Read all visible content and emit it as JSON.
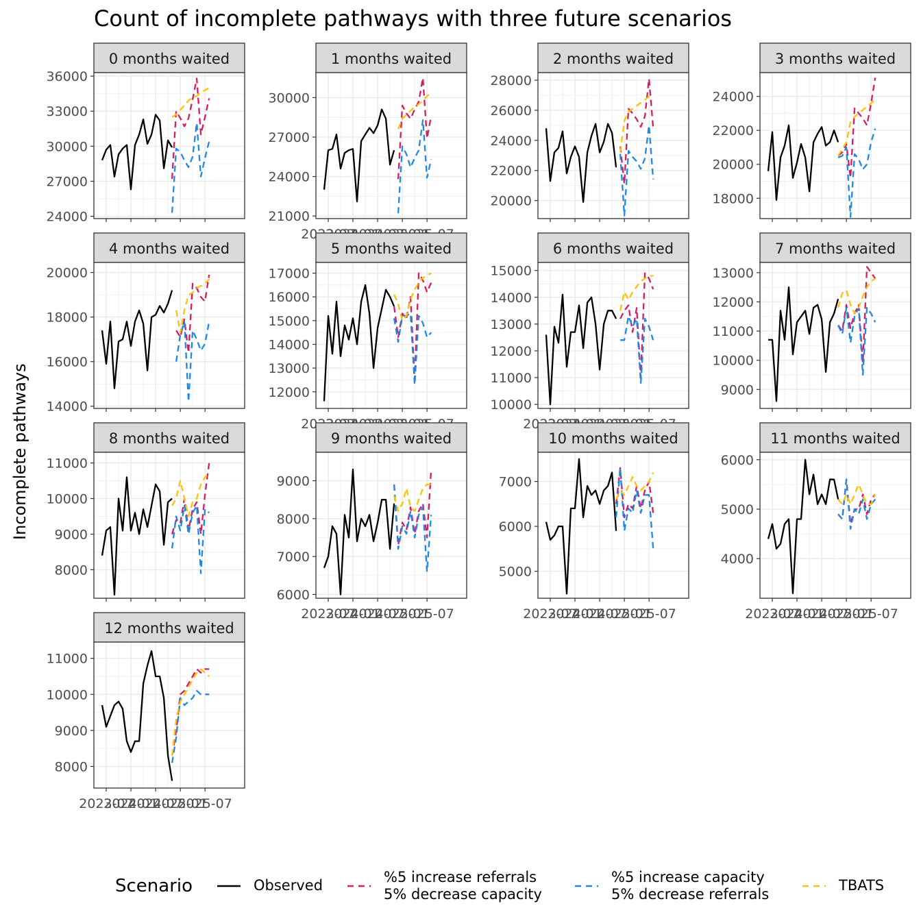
{
  "title": "Count of incomplete pathways with three future scenarios",
  "y_axis_label": "Incomplete pathways",
  "legend": {
    "title": "Scenario",
    "items": [
      {
        "id": "observed",
        "label_lines": [
          "Observed"
        ]
      },
      {
        "id": "increase_referrals",
        "label_lines": [
          "%5 increase referrals",
          "5% decrease capacity"
        ]
      },
      {
        "id": "increase_capacity",
        "label_lines": [
          "%5 increase capacity",
          "5% decrease referrals"
        ]
      },
      {
        "id": "tbats",
        "label_lines": [
          "TBATS"
        ]
      }
    ]
  },
  "colors": {
    "observed": "#000000",
    "increase_referrals": "#D81B60",
    "increase_capacity": "#1E88E5",
    "tbats": "#FFC107",
    "strip_fill": "#D9D9D9",
    "grid": "#EBEBEB",
    "panel_border": "#333333",
    "tick_text": "#4D4D4D"
  },
  "chart_data": {
    "type": "line",
    "facet_layout": "wrap 4 columns, free y scales",
    "x_tick_labels": [
      "2023-07",
      "2024-01",
      "2024-07",
      "2025-01",
      "2025-07"
    ],
    "series_order": [
      "observed",
      "increase_referrals",
      "increase_capacity",
      "tbats"
    ],
    "panels": [
      {
        "label": "0 months waited",
        "y_ticks": [
          24000,
          27000,
          30000,
          33000,
          36000
        ],
        "ylim": [
          23800,
          36300
        ],
        "show_x_axis": false,
        "series": {
          "observed": [
            28800,
            29700,
            30100,
            27400,
            29300,
            29800,
            30100,
            26300,
            30100,
            31000,
            32300,
            30200,
            31000,
            32700,
            32200,
            28100,
            30500,
            29900
          ],
          "increase_referrals": [
            27200,
            33000,
            32400,
            31700,
            32400,
            34000,
            35800,
            31000,
            32500,
            34100
          ],
          "increase_capacity": [
            24300,
            29800,
            29500,
            28800,
            28200,
            29100,
            32000,
            27400,
            29000,
            30400
          ],
          "tbats": [
            32500,
            32700,
            33100,
            33500,
            33900,
            34200,
            34300,
            34600,
            34800,
            35000
          ]
        }
      },
      {
        "label": "1 months waited",
        "y_ticks": [
          21000,
          24000,
          27000,
          30000
        ],
        "ylim": [
          20800,
          31900
        ],
        "show_x_axis": true,
        "series": {
          "observed": [
            23000,
            26000,
            26100,
            27200,
            24600,
            25800,
            26000,
            26100,
            22100,
            26700,
            27200,
            27700,
            27300,
            27900,
            29100,
            28400,
            24900,
            26000
          ],
          "increase_referrals": [
            23800,
            29400,
            28800,
            28400,
            29100,
            29700,
            31500,
            26900,
            28600
          ],
          "increase_capacity": [
            21200,
            26300,
            25700,
            24700,
            25400,
            26000,
            28300,
            23900,
            25300
          ],
          "tbats": [
            27600,
            28400,
            28700,
            29000,
            29300,
            29500,
            29800,
            30100,
            30400
          ]
        }
      },
      {
        "label": "2 months waited",
        "y_ticks": [
          20000,
          22000,
          24000,
          26000,
          28000
        ],
        "ylim": [
          18800,
          28500
        ],
        "show_x_axis": false,
        "series": {
          "observed": [
            24800,
            21300,
            23200,
            23500,
            24600,
            21800,
            22900,
            23600,
            22900,
            19900,
            23200,
            24300,
            25100,
            23200,
            23900,
            25100,
            24500,
            22200
          ],
          "increase_referrals": [
            23600,
            21100,
            26100,
            25800,
            25400,
            24900,
            25600,
            28100,
            24800
          ],
          "increase_capacity": [
            23100,
            19000,
            23300,
            22900,
            22600,
            22100,
            22800,
            25000,
            21400
          ],
          "tbats": [
            23200,
            25300,
            25900,
            26100,
            26300,
            26500,
            26700,
            26900,
            27000
          ]
        }
      },
      {
        "label": "3 months waited",
        "y_ticks": [
          18000,
          20000,
          22000,
          24000
        ],
        "ylim": [
          16800,
          25400
        ],
        "show_x_axis": false,
        "series": {
          "observed": [
            19600,
            21900,
            17900,
            20400,
            21100,
            22300,
            19200,
            20100,
            21200,
            20400,
            18400,
            21300,
            21800,
            22200,
            21100,
            21300,
            22000,
            21300
          ],
          "increase_referrals": [
            20500,
            20700,
            21200,
            19200,
            23300,
            23000,
            22700,
            22300,
            23600,
            25100
          ],
          "increase_capacity": [
            20400,
            20500,
            21000,
            16900,
            20600,
            20300,
            19700,
            20000,
            21300,
            22100
          ],
          "tbats": [
            20500,
            20900,
            21300,
            22500,
            22800,
            23000,
            23200,
            23400,
            23600,
            23800
          ]
        }
      },
      {
        "label": "4 months waited",
        "y_ticks": [
          14000,
          16000,
          18000,
          20000
        ],
        "ylim": [
          13900,
          20450
        ],
        "show_x_axis": false,
        "series": {
          "observed": [
            17400,
            15900,
            17800,
            14800,
            16900,
            17000,
            17800,
            16700,
            17800,
            18300,
            17700,
            15600,
            18000,
            18100,
            18500,
            18200,
            18600,
            19200
          ],
          "increase_referrals": [
            17400,
            17100,
            17900,
            16400,
            19500,
            19300,
            18900,
            18700,
            19900
          ],
          "increase_capacity": [
            16000,
            17200,
            17800,
            14200,
            17400,
            17000,
            16500,
            16800,
            17800
          ],
          "tbats": [
            18300,
            17300,
            18300,
            19000,
            19100,
            19300,
            19400,
            19500,
            19700
          ]
        }
      },
      {
        "label": "5 months waited",
        "y_ticks": [
          12000,
          13000,
          14000,
          15000,
          16000,
          17000
        ],
        "ylim": [
          11300,
          17450
        ],
        "show_x_axis": true,
        "series": {
          "observed": [
            11600,
            15200,
            13600,
            15800,
            13500,
            14800,
            14200,
            15100,
            14000,
            15800,
            16500,
            15300,
            13000,
            14700,
            15500,
            16300,
            16000,
            15600
          ],
          "increase_referrals": [
            15600,
            14300,
            15300,
            15100,
            16000,
            12500,
            17000,
            16700,
            16200,
            16600
          ],
          "increase_capacity": [
            15100,
            14100,
            15200,
            15200,
            15300,
            12300,
            15200,
            14900,
            14300,
            14500
          ],
          "tbats": [
            16100,
            15700,
            15000,
            15200,
            15900,
            16300,
            16600,
            16800,
            16900,
            17000
          ]
        }
      },
      {
        "label": "6 months waited",
        "y_ticks": [
          10000,
          11000,
          12000,
          13000,
          14000,
          15000
        ],
        "ylim": [
          9850,
          15300
        ],
        "show_x_axis": true,
        "series": {
          "observed": [
            12600,
            10000,
            12900,
            12300,
            14100,
            11400,
            12700,
            12700,
            13700,
            12100,
            13800,
            14000,
            13000,
            11300,
            13000,
            13500,
            13500,
            13200
          ],
          "increase_referrals": [
            13200,
            13500,
            13700,
            12700,
            13600,
            11000,
            14900,
            14700,
            14300
          ],
          "increase_capacity": [
            12400,
            12400,
            13300,
            12900,
            13200,
            10800,
            13200,
            12900,
            12400
          ],
          "tbats": [
            13500,
            14200,
            13900,
            14200,
            14400,
            14600,
            14700,
            14800,
            14800
          ]
        }
      },
      {
        "label": "7 months waited",
        "y_ticks": [
          9000,
          10000,
          11000,
          12000,
          13000
        ],
        "ylim": [
          8350,
          13350
        ],
        "show_x_axis": false,
        "series": {
          "observed": [
            10700,
            10700,
            8600,
            11700,
            10700,
            12500,
            10200,
            11300,
            11500,
            11700,
            10900,
            11800,
            11900,
            11400,
            9600,
            11300,
            11600,
            12100
          ],
          "increase_referrals": [
            11200,
            11000,
            11900,
            11100,
            11600,
            11900,
            9900,
            13200,
            13000,
            12800
          ],
          "increase_capacity": [
            11200,
            10900,
            11800,
            10600,
            11500,
            11800,
            9500,
            11800,
            11600,
            11300
          ],
          "tbats": [
            11800,
            12300,
            12400,
            11900,
            11600,
            11800,
            12200,
            12500,
            12700,
            12800
          ]
        }
      },
      {
        "label": "8 months waited",
        "y_ticks": [
          8000,
          9000,
          10000,
          11000
        ],
        "ylim": [
          7200,
          11300
        ],
        "show_x_axis": false,
        "series": {
          "observed": [
            8400,
            9100,
            9200,
            7300,
            10000,
            9100,
            10600,
            9100,
            9600,
            9000,
            9700,
            9200,
            9800,
            10400,
            10200,
            8700,
            9900,
            10000
          ],
          "increase_referrals": [
            9000,
            9400,
            9300,
            10000,
            9100,
            9700,
            9900,
            9000,
            10100,
            11000
          ],
          "increase_capacity": [
            8600,
            9500,
            9100,
            9800,
            9000,
            9600,
            9800,
            7900,
            9700,
            9600
          ],
          "tbats": [
            9800,
            10000,
            10500,
            10000,
            9500,
            9900,
            10000,
            10400,
            10600,
            10700
          ]
        }
      },
      {
        "label": "9 months waited",
        "y_ticks": [
          6000,
          7000,
          8000,
          9000
        ],
        "ylim": [
          5900,
          9750
        ],
        "show_x_axis": true,
        "series": {
          "observed": [
            6700,
            7000,
            7800,
            7600,
            6000,
            8100,
            7500,
            9300,
            7400,
            8000,
            7800,
            8100,
            7400,
            7900,
            8500,
            8500,
            7200,
            8400
          ],
          "increase_referrals": [
            8900,
            7300,
            7900,
            7700,
            8300,
            7600,
            8200,
            8400,
            7500,
            9300
          ],
          "increase_capacity": [
            8900,
            7200,
            7800,
            7600,
            8200,
            7500,
            8100,
            8300,
            6600,
            8100
          ],
          "tbats": [
            8600,
            8200,
            8400,
            8800,
            8300,
            8200,
            8500,
            8800,
            8900,
            8900
          ]
        }
      },
      {
        "label": "10 months waited",
        "y_ticks": [
          5000,
          6000,
          7000
        ],
        "ylim": [
          4400,
          7650
        ],
        "show_x_axis": true,
        "series": {
          "observed": [
            6100,
            5700,
            5800,
            6000,
            6000,
            4500,
            6400,
            6400,
            7500,
            6200,
            6900,
            6700,
            6800,
            6500,
            6800,
            6900,
            7200,
            5900
          ],
          "increase_referrals": [
            6500,
            7300,
            6200,
            6500,
            6400,
            6900,
            6400,
            6800,
            7000,
            6300
          ],
          "increase_capacity": [
            6200,
            7300,
            5900,
            6400,
            6300,
            6800,
            6300,
            6700,
            6700,
            5500
          ],
          "tbats": [
            6600,
            6800,
            6700,
            6900,
            7100,
            6900,
            6800,
            6900,
            7000,
            7200
          ]
        }
      },
      {
        "label": "11 months waited",
        "y_ticks": [
          4000,
          5000,
          6000
        ],
        "ylim": [
          3200,
          6150
        ],
        "show_x_axis": true,
        "series": {
          "observed": [
            4400,
            4700,
            4200,
            4300,
            4700,
            4800,
            3300,
            4800,
            4800,
            6000,
            5300,
            5700,
            5100,
            5300,
            5100,
            5600,
            5600,
            5200
          ],
          "increase_referrals": [
            4900,
            4800,
            5600,
            4700,
            5000,
            5000,
            5300,
            4900,
            5200,
            5300
          ],
          "increase_capacity": [
            4900,
            4800,
            5600,
            4600,
            5000,
            4900,
            5200,
            4800,
            5100,
            5200
          ],
          "tbats": [
            5200,
            5100,
            5300,
            5100,
            5300,
            5500,
            5300,
            5100,
            5100,
            5300
          ]
        }
      },
      {
        "label": "12 months waited",
        "y_ticks": [
          8000,
          9000,
          10000,
          11000
        ],
        "ylim": [
          7400,
          11450
        ],
        "show_x_axis": true,
        "series": {
          "observed": [
            9700,
            9100,
            9400,
            9700,
            9800,
            9600,
            8700,
            8400,
            8700,
            8700,
            10300,
            10800,
            11200,
            10500,
            10500,
            9900,
            8300,
            7600
          ],
          "increase_referrals": [
            8300,
            9000,
            10000,
            10100,
            10300,
            10500,
            10700,
            10600,
            10700,
            10700
          ],
          "increase_capacity": [
            8100,
            8800,
            9900,
            9700,
            9800,
            9900,
            10100,
            10000,
            10000,
            10000
          ],
          "tbats": [
            8300,
            9300,
            9800,
            10000,
            10200,
            10400,
            10600,
            10700,
            10600,
            10500
          ]
        }
      }
    ]
  }
}
